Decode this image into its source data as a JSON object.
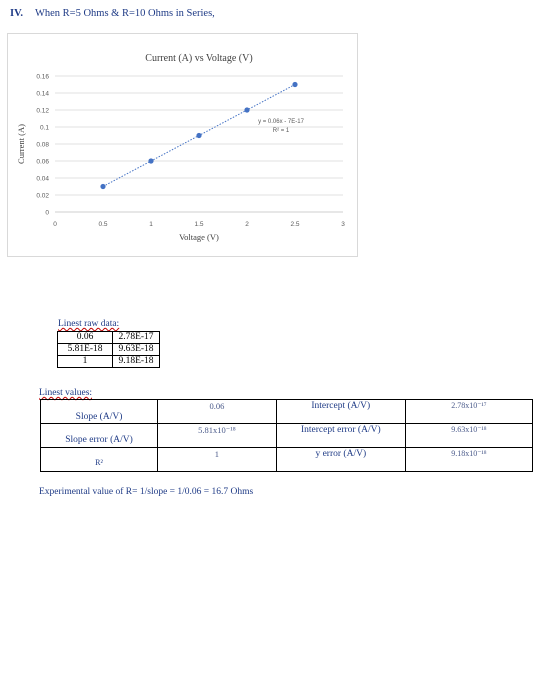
{
  "heading": {
    "number": "IV.",
    "text": "When R=5 Ohms & R=10 Ohms in Series,"
  },
  "chart_data": {
    "type": "scatter",
    "title": "Current (A) vs Voltage (V)",
    "xlabel": "Voltage (V)",
    "ylabel": "Current (A)",
    "xlim": [
      0,
      3
    ],
    "ylim": [
      0,
      0.16
    ],
    "x_ticks": [
      "0",
      "0.5",
      "1",
      "1.5",
      "2",
      "2.5",
      "3"
    ],
    "x_tick_values": [
      0,
      0.5,
      1,
      1.5,
      2,
      2.5,
      3
    ],
    "y_ticks": [
      "0",
      "0.02",
      "0.04",
      "0.06",
      "0.08",
      "0.1",
      "0.12",
      "0.14",
      "0.16"
    ],
    "y_tick_values": [
      0,
      0.02,
      0.04,
      0.06,
      0.08,
      0.1,
      0.12,
      0.14,
      0.16
    ],
    "grid": "horizontal",
    "series": [
      {
        "x": [
          0.5,
          1,
          1.5,
          2,
          2.5
        ],
        "y": [
          0.03,
          0.06,
          0.09,
          0.12,
          0.15
        ],
        "color": "#4472c4",
        "trendline": "linear"
      }
    ],
    "annotations": [
      "y = 0.06x - 7E-17",
      "R² = 1"
    ]
  },
  "linest_raw": {
    "title": "Linest raw data:",
    "rows": [
      [
        "0.06",
        "2.78E-17"
      ],
      [
        "5.81E-18",
        "9.63E-18"
      ],
      [
        "1",
        "9.18E-18"
      ]
    ]
  },
  "linest_values": {
    "title": "Linest values:",
    "rows": [
      {
        "label": "Slope (A/V)",
        "value": "0.06",
        "label2": "Intercept (A/V)",
        "value2": "2.78x10⁻¹⁷"
      },
      {
        "label": "Slope error (A/V)",
        "value": "5.81x10⁻¹⁸",
        "label2": "Intercept error (A/V)",
        "value2": "9.63x10⁻¹⁸"
      },
      {
        "label": "R²",
        "value": "1",
        "label2": "y error (A/V)",
        "value2": "9.18x10⁻¹⁸"
      }
    ]
  },
  "experimental": "Experimental value of R= 1/slope = 1/0.06 = 16.7 Ohms"
}
